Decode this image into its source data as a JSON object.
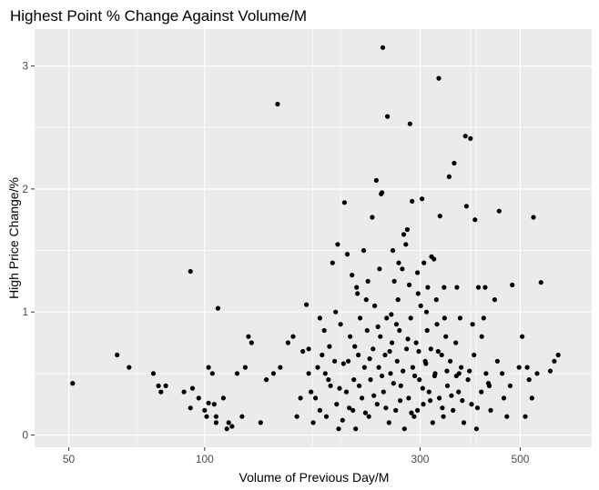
{
  "chart_data": {
    "type": "scatter",
    "title": "Highest Point % Change Against Volume/M",
    "xlabel": "Volume of Previous Day/M",
    "ylabel": "High Price Change/%",
    "x_scale": "log10",
    "xlim": [
      42,
      720
    ],
    "ylim": [
      -0.1,
      3.3
    ],
    "x_ticks": [
      50,
      100,
      300,
      500
    ],
    "x_tick_labels": [
      "50",
      "100",
      "300",
      "500"
    ],
    "y_ticks": [
      0,
      1,
      2,
      3
    ],
    "y_tick_labels": [
      "0",
      "1",
      "2",
      "3"
    ],
    "grid": true,
    "panel_background": "#ebebeb",
    "grid_color": "#ffffff",
    "point_color": "#000000",
    "points": [
      [
        51,
        0.42
      ],
      [
        64,
        0.65
      ],
      [
        68,
        0.55
      ],
      [
        77,
        0.5
      ],
      [
        79,
        0.4
      ],
      [
        80,
        0.35
      ],
      [
        82,
        0.4
      ],
      [
        90,
        0.35
      ],
      [
        93,
        1.33
      ],
      [
        93,
        0.22
      ],
      [
        94,
        0.38
      ],
      [
        97,
        0.3
      ],
      [
        100,
        0.2
      ],
      [
        101,
        0.15
      ],
      [
        102,
        0.55
      ],
      [
        102,
        0.26
      ],
      [
        104,
        0.5
      ],
      [
        105,
        0.25
      ],
      [
        106,
        0.1
      ],
      [
        106,
        0.15
      ],
      [
        107,
        1.03
      ],
      [
        110,
        0.3
      ],
      [
        112,
        0.05
      ],
      [
        113,
        0.1
      ],
      [
        115,
        0.07
      ],
      [
        118,
        0.5
      ],
      [
        121,
        0.15
      ],
      [
        123,
        0.55
      ],
      [
        125,
        0.8
      ],
      [
        127,
        0.75
      ],
      [
        133,
        0.1
      ],
      [
        137,
        0.45
      ],
      [
        142,
        0.5
      ],
      [
        145,
        2.69
      ],
      [
        147,
        0.55
      ],
      [
        153,
        0.75
      ],
      [
        157,
        0.8
      ],
      [
        160,
        0.15
      ],
      [
        163,
        0.3
      ],
      [
        165,
        0.68
      ],
      [
        168,
        1.06
      ],
      [
        170,
        0.5
      ],
      [
        176,
        0.3
      ],
      [
        182,
        0.65
      ],
      [
        188,
        0.45
      ],
      [
        192,
        1.4
      ],
      [
        197,
        1.55
      ],
      [
        198,
        0.05
      ],
      [
        204,
        1.89
      ],
      [
        206,
        0.35
      ],
      [
        207,
        1.47
      ],
      [
        212,
        1.3
      ],
      [
        213,
        0.2
      ],
      [
        217,
        1.2
      ],
      [
        225,
        1.5
      ],
      [
        228,
        1.1
      ],
      [
        235,
        1.77
      ],
      [
        240,
        2.07
      ],
      [
        246,
        1.96
      ],
      [
        247,
        1.97
      ],
      [
        248,
        3.15
      ],
      [
        254,
        2.59
      ],
      [
        261,
        1.5
      ],
      [
        268,
        1.1
      ],
      [
        276,
        1.63
      ],
      [
        279,
        1.55
      ],
      [
        281,
        1.67
      ],
      [
        285,
        2.53
      ],
      [
        288,
        1.9
      ],
      [
        296,
        0.2
      ],
      [
        297,
        1.15
      ],
      [
        303,
        1.92
      ],
      [
        306,
        1.4
      ],
      [
        312,
        1.2
      ],
      [
        318,
        1.45
      ],
      [
        322,
        1.43
      ],
      [
        330,
        2.9
      ],
      [
        332,
        1.78
      ],
      [
        339,
        1.2
      ],
      [
        348,
        2.1
      ],
      [
        357,
        2.21
      ],
      [
        362,
        1.2
      ],
      [
        366,
        0.5
      ],
      [
        378,
        2.43
      ],
      [
        380,
        1.86
      ],
      [
        388,
        2.41
      ],
      [
        397,
        1.75
      ],
      [
        404,
        1.2
      ],
      [
        411,
        0.8
      ],
      [
        418,
        1.2
      ],
      [
        427,
        0.4
      ],
      [
        439,
        1.1
      ],
      [
        449,
        1.82
      ],
      [
        456,
        0.5
      ],
      [
        467,
        0.15
      ],
      [
        480,
        1.22
      ],
      [
        497,
        0.55
      ],
      [
        505,
        0.8
      ],
      [
        513,
        0.15
      ],
      [
        518,
        0.55
      ],
      [
        523,
        0.45
      ],
      [
        531,
        0.3
      ],
      [
        535,
        1.77
      ],
      [
        545,
        0.5
      ],
      [
        556,
        1.24
      ],
      [
        583,
        0.52
      ],
      [
        595,
        0.6
      ],
      [
        607,
        0.65
      ],
      [
        170,
        0.7
      ],
      [
        172,
        0.35
      ],
      [
        174,
        0.1
      ],
      [
        178,
        0.55
      ],
      [
        180,
        0.2
      ],
      [
        184,
        0.85
      ],
      [
        186,
        0.15
      ],
      [
        190,
        0.4
      ],
      [
        194,
        0.6
      ],
      [
        196,
        0.25
      ],
      [
        200,
        0.9
      ],
      [
        202,
        0.12
      ],
      [
        208,
        0.6
      ],
      [
        210,
        0.8
      ],
      [
        214,
        0.45
      ],
      [
        216,
        0.05
      ],
      [
        219,
        0.65
      ],
      [
        221,
        0.95
      ],
      [
        223,
        0.3
      ],
      [
        226,
        0.55
      ],
      [
        229,
        0.85
      ],
      [
        231,
        0.15
      ],
      [
        233,
        0.45
      ],
      [
        236,
        0.7
      ],
      [
        238,
        1.05
      ],
      [
        241,
        0.25
      ],
      [
        243,
        0.55
      ],
      [
        245,
        0.8
      ],
      [
        249,
        0.35
      ],
      [
        251,
        0.65
      ],
      [
        253,
        0.95
      ],
      [
        256,
        0.1
      ],
      [
        258,
        0.5
      ],
      [
        260,
        0.75
      ],
      [
        263,
        1.25
      ],
      [
        265,
        0.2
      ],
      [
        267,
        0.6
      ],
      [
        270,
        0.85
      ],
      [
        272,
        0.4
      ],
      [
        274,
        1.35
      ],
      [
        277,
        0.05
      ],
      [
        280,
        0.7
      ],
      [
        283,
        0.3
      ],
      [
        286,
        0.95
      ],
      [
        289,
        0.55
      ],
      [
        291,
        0.15
      ],
      [
        294,
        0.75
      ],
      [
        299,
        0.45
      ],
      [
        301,
        1.05
      ],
      [
        305,
        0.25
      ],
      [
        308,
        0.6
      ],
      [
        311,
        0.85
      ],
      [
        314,
        0.35
      ],
      [
        317,
        0.7
      ],
      [
        320,
        0.1
      ],
      [
        324,
        0.5
      ],
      [
        327,
        0.9
      ],
      [
        331,
        0.3
      ],
      [
        335,
        0.65
      ],
      [
        338,
        0.15
      ],
      [
        342,
        0.8
      ],
      [
        345,
        0.4
      ],
      [
        350,
        0.6
      ],
      [
        355,
        0.2
      ],
      [
        360,
        0.75
      ],
      [
        365,
        0.35
      ],
      [
        370,
        0.55
      ],
      [
        375,
        0.1
      ],
      [
        383,
        0.45
      ],
      [
        390,
        0.25
      ],
      [
        395,
        0.65
      ],
      [
        400,
        0.05
      ],
      [
        410,
        0.35
      ],
      [
        420,
        0.5
      ],
      [
        430,
        0.2
      ],
      [
        445,
        0.6
      ],
      [
        460,
        0.3
      ],
      [
        475,
        0.4
      ],
      [
        185,
        0.5
      ],
      [
        189,
        0.72
      ],
      [
        199,
        0.38
      ],
      [
        203,
        0.58
      ],
      [
        209,
        0.22
      ],
      [
        215,
        0.72
      ],
      [
        220,
        0.4
      ],
      [
        227,
        0.18
      ],
      [
        232,
        0.62
      ],
      [
        237,
        0.32
      ],
      [
        242,
        0.88
      ],
      [
        247,
        0.48
      ],
      [
        252,
        0.22
      ],
      [
        257,
        0.68
      ],
      [
        262,
        0.42
      ],
      [
        266,
        0.9
      ],
      [
        271,
        0.28
      ],
      [
        275,
        0.52
      ],
      [
        282,
        0.78
      ],
      [
        287,
        0.18
      ],
      [
        292,
        0.48
      ],
      [
        298,
        0.68
      ],
      [
        304,
        0.38
      ],
      [
        309,
        0.58
      ],
      [
        316,
        0.28
      ],
      [
        323,
        0.48
      ],
      [
        329,
        0.68
      ],
      [
        336,
        0.22
      ],
      [
        344,
        0.52
      ],
      [
        352,
        0.32
      ],
      [
        361,
        0.48
      ],
      [
        372,
        0.28
      ],
      [
        386,
        0.52
      ],
      [
        402,
        0.22
      ],
      [
        425,
        0.42
      ],
      [
        180,
        0.95
      ],
      [
        195,
        1.0
      ],
      [
        218,
        1.15
      ],
      [
        230,
        1.25
      ],
      [
        244,
        1.35
      ],
      [
        259,
        0.98
      ],
      [
        269,
        1.4
      ],
      [
        284,
        1.22
      ],
      [
        296,
        1.32
      ],
      [
        310,
        1.0
      ],
      [
        326,
        1.1
      ],
      [
        340,
        0.95
      ],
      [
        368,
        0.95
      ],
      [
        392,
        0.9
      ],
      [
        415,
        0.95
      ]
    ]
  }
}
